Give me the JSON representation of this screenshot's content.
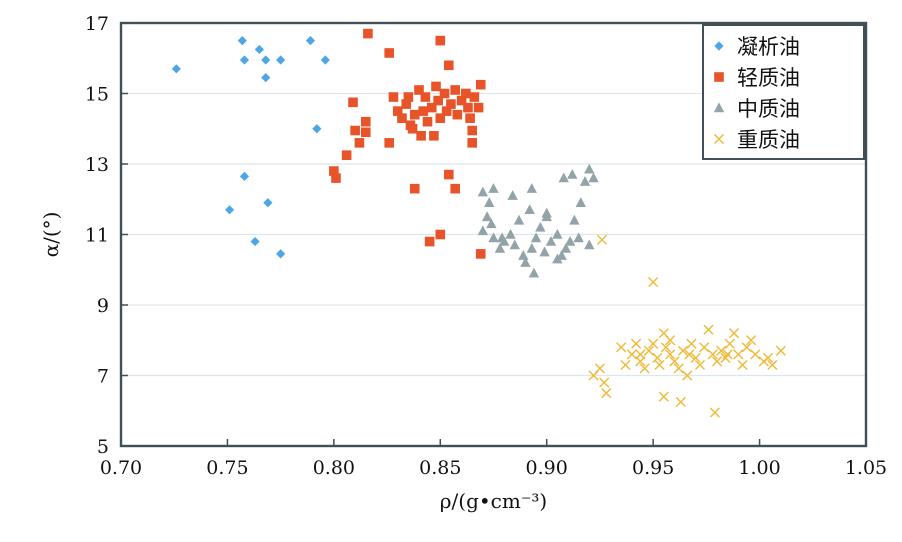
{
  "chart_data": {
    "type": "scatter",
    "title": "",
    "xlabel": "ρ/(g•cm⁻³)",
    "ylabel": "α/(°)",
    "xlim": [
      0.7,
      1.05
    ],
    "ylim": [
      5,
      17
    ],
    "xticks": [
      "0.70",
      "0.75",
      "0.80",
      "0.85",
      "0.90",
      "0.95",
      "1.00",
      "1.05"
    ],
    "yticks": [
      "5",
      "7",
      "9",
      "11",
      "13",
      "15",
      "17"
    ],
    "grid": "horizontal",
    "legend_position": "top-right",
    "series": [
      {
        "name": "凝析油",
        "marker": "diamond",
        "color": "#4ea6e6",
        "points": [
          [
            0.726,
            15.7
          ],
          [
            0.757,
            16.5
          ],
          [
            0.758,
            15.95
          ],
          [
            0.765,
            16.25
          ],
          [
            0.768,
            15.95
          ],
          [
            0.768,
            15.45
          ],
          [
            0.775,
            15.95
          ],
          [
            0.789,
            16.5
          ],
          [
            0.796,
            15.95
          ],
          [
            0.792,
            14.0
          ],
          [
            0.758,
            12.65
          ],
          [
            0.751,
            11.7
          ],
          [
            0.769,
            11.9
          ],
          [
            0.763,
            10.8
          ],
          [
            0.775,
            10.45
          ]
        ]
      },
      {
        "name": "轻质油",
        "marker": "square",
        "color": "#e8542a",
        "points": [
          [
            0.816,
            16.7
          ],
          [
            0.85,
            16.5
          ],
          [
            0.826,
            16.15
          ],
          [
            0.854,
            15.8
          ],
          [
            0.809,
            14.75
          ],
          [
            0.81,
            13.95
          ],
          [
            0.815,
            13.9
          ],
          [
            0.815,
            14.2
          ],
          [
            0.812,
            13.6
          ],
          [
            0.806,
            13.25
          ],
          [
            0.8,
            12.8
          ],
          [
            0.801,
            12.6
          ],
          [
            0.826,
            13.6
          ],
          [
            0.828,
            14.9
          ],
          [
            0.83,
            14.5
          ],
          [
            0.832,
            14.3
          ],
          [
            0.834,
            14.7
          ],
          [
            0.836,
            14.1
          ],
          [
            0.838,
            14.4
          ],
          [
            0.84,
            15.1
          ],
          [
            0.842,
            14.5
          ],
          [
            0.843,
            14.9
          ],
          [
            0.844,
            14.2
          ],
          [
            0.846,
            14.6
          ],
          [
            0.848,
            15.2
          ],
          [
            0.849,
            14.8
          ],
          [
            0.85,
            14.3
          ],
          [
            0.852,
            15.0
          ],
          [
            0.853,
            14.5
          ],
          [
            0.855,
            14.7
          ],
          [
            0.857,
            15.1
          ],
          [
            0.858,
            14.4
          ],
          [
            0.86,
            14.8
          ],
          [
            0.862,
            15.0
          ],
          [
            0.863,
            14.6
          ],
          [
            0.864,
            14.3
          ],
          [
            0.866,
            14.9
          ],
          [
            0.868,
            14.6
          ],
          [
            0.869,
            15.25
          ],
          [
            0.835,
            14.9
          ],
          [
            0.837,
            14.0
          ],
          [
            0.841,
            13.8
          ],
          [
            0.847,
            13.8
          ],
          [
            0.865,
            13.95
          ],
          [
            0.865,
            13.6
          ],
          [
            0.854,
            12.7
          ],
          [
            0.857,
            12.3
          ],
          [
            0.838,
            12.3
          ],
          [
            0.85,
            11.0
          ],
          [
            0.845,
            10.8
          ],
          [
            0.869,
            10.45
          ]
        ]
      },
      {
        "name": "中质油",
        "marker": "triangle",
        "color": "#93a4a8",
        "points": [
          [
            0.87,
            12.2
          ],
          [
            0.873,
            11.9
          ],
          [
            0.875,
            12.3
          ],
          [
            0.872,
            11.5
          ],
          [
            0.87,
            11.1
          ],
          [
            0.875,
            10.9
          ],
          [
            0.878,
            10.6
          ],
          [
            0.88,
            10.8
          ],
          [
            0.883,
            11.0
          ],
          [
            0.885,
            10.7
          ],
          [
            0.887,
            11.4
          ],
          [
            0.889,
            10.4
          ],
          [
            0.892,
            11.7
          ],
          [
            0.893,
            10.6
          ],
          [
            0.895,
            10.9
          ],
          [
            0.897,
            11.2
          ],
          [
            0.899,
            10.5
          ],
          [
            0.9,
            11.6
          ],
          [
            0.902,
            10.8
          ],
          [
            0.905,
            11.0
          ],
          [
            0.907,
            10.4
          ],
          [
            0.909,
            10.6
          ],
          [
            0.911,
            10.8
          ],
          [
            0.913,
            11.4
          ],
          [
            0.916,
            11.9
          ],
          [
            0.918,
            12.5
          ],
          [
            0.92,
            12.85
          ],
          [
            0.922,
            12.6
          ],
          [
            0.908,
            12.6
          ],
          [
            0.912,
            12.7
          ],
          [
            0.893,
            12.3
          ],
          [
            0.884,
            12.1
          ],
          [
            0.874,
            11.3
          ],
          [
            0.89,
            10.2
          ],
          [
            0.894,
            9.9
          ],
          [
            0.905,
            10.3
          ],
          [
            0.92,
            10.7
          ],
          [
            0.915,
            10.9
          ],
          [
            0.879,
            10.9
          ],
          [
            0.9,
            11.5
          ]
        ]
      },
      {
        "name": "重质油",
        "marker": "x",
        "color": "#f0b935",
        "points": [
          [
            0.926,
            10.85
          ],
          [
            0.95,
            9.65
          ],
          [
            0.922,
            7.0
          ],
          [
            0.925,
            7.2
          ],
          [
            0.927,
            6.8
          ],
          [
            0.928,
            6.5
          ],
          [
            0.935,
            7.8
          ],
          [
            0.937,
            7.3
          ],
          [
            0.94,
            7.6
          ],
          [
            0.942,
            7.9
          ],
          [
            0.944,
            7.4
          ],
          [
            0.946,
            7.2
          ],
          [
            0.948,
            7.7
          ],
          [
            0.95,
            7.9
          ],
          [
            0.952,
            7.5
          ],
          [
            0.953,
            7.3
          ],
          [
            0.955,
            8.2
          ],
          [
            0.956,
            7.8
          ],
          [
            0.958,
            7.6
          ],
          [
            0.96,
            7.4
          ],
          [
            0.962,
            7.2
          ],
          [
            0.964,
            7.7
          ],
          [
            0.966,
            7.0
          ],
          [
            0.968,
            7.9
          ],
          [
            0.97,
            7.5
          ],
          [
            0.972,
            7.3
          ],
          [
            0.974,
            7.8
          ],
          [
            0.976,
            8.3
          ],
          [
            0.978,
            7.6
          ],
          [
            0.98,
            7.4
          ],
          [
            0.982,
            7.7
          ],
          [
            0.984,
            7.5
          ],
          [
            0.986,
            7.9
          ],
          [
            0.988,
            8.2
          ],
          [
            0.99,
            7.6
          ],
          [
            0.992,
            7.3
          ],
          [
            0.994,
            7.8
          ],
          [
            0.996,
            8.0
          ],
          [
            0.998,
            7.6
          ],
          [
            1.002,
            7.4
          ],
          [
            1.004,
            7.5
          ],
          [
            1.006,
            7.3
          ],
          [
            1.01,
            7.7
          ],
          [
            0.955,
            6.4
          ],
          [
            0.963,
            6.25
          ],
          [
            0.979,
            5.95
          ],
          [
            0.944,
            7.6
          ],
          [
            0.958,
            8.0
          ],
          [
            0.967,
            7.6
          ],
          [
            0.985,
            7.6
          ]
        ]
      }
    ]
  }
}
